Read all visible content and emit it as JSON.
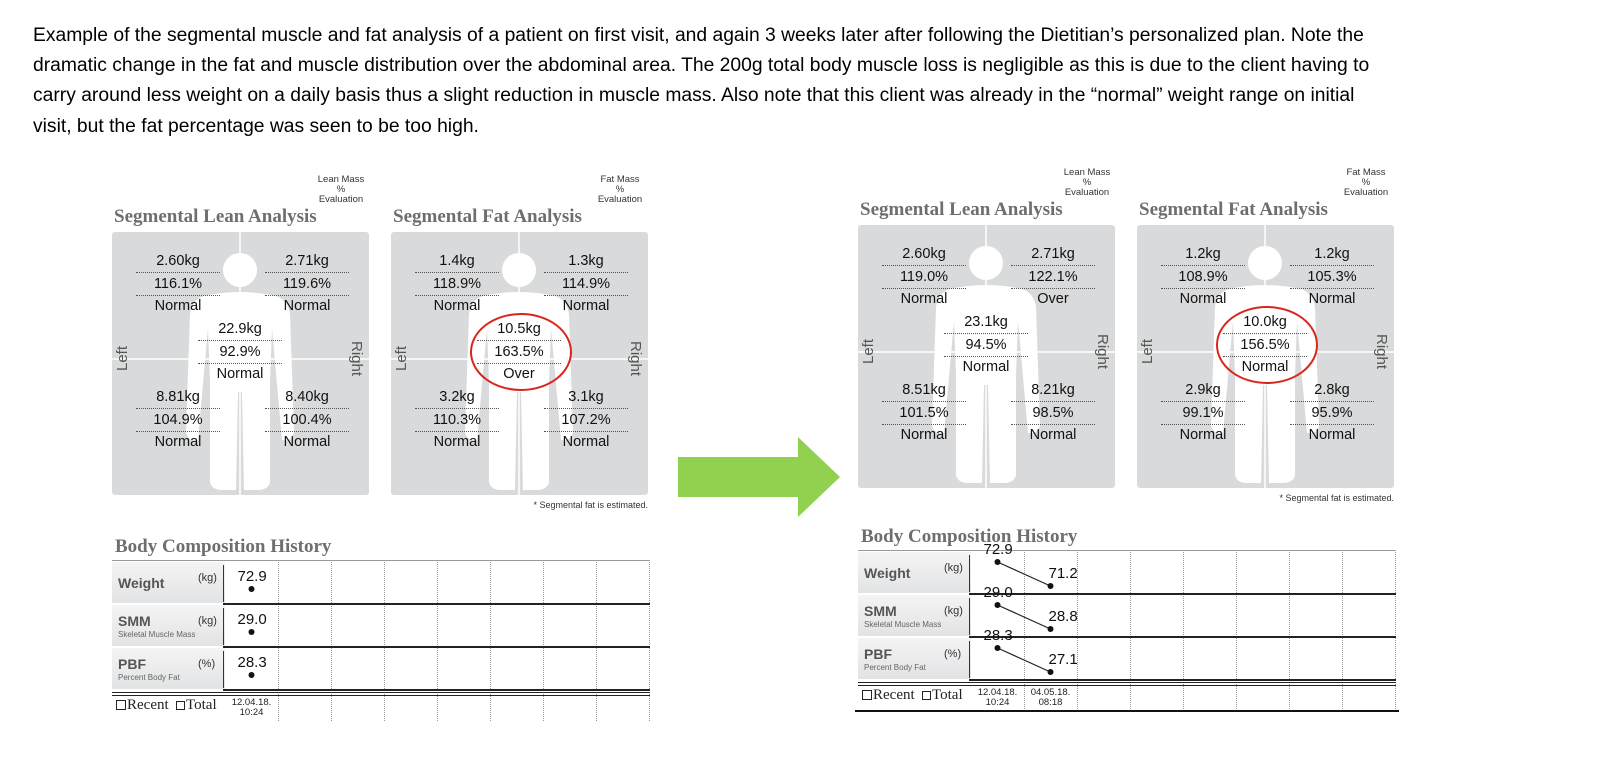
{
  "caption": {
    "lines": [
      "Example of the segmental muscle and fat analysis of a patient on first visit, and again 3 weeks later after following the Dietitian’s personalized plan.  Note the",
      "dramatic change in the fat and muscle distribution over the abdominal area.  The 200g total body muscle loss is negligible as this is due to the client having to",
      "carry around less weight on a daily basis thus a slight reduction in muscle mass.   Also note that this client was already in the “normal” weight range on initial",
      "visit, but the fat percentage was seen to be too high."
    ]
  },
  "reports": [
    {
      "lean": {
        "legend": [
          "Lean Mass",
          "%",
          "Evaluation"
        ],
        "title": "Segmental Lean Analysis",
        "side_left": "Left",
        "side_right": "Right",
        "segments": [
          {
            "mass": "2.60kg",
            "percent": "116.1%",
            "evaluation": "Normal"
          },
          {
            "mass": "2.71kg",
            "percent": "119.6%",
            "evaluation": "Normal"
          },
          {
            "mass": "22.9kg",
            "percent": "92.9%",
            "evaluation": "Normal"
          },
          {
            "mass": "8.81kg",
            "percent": "104.9%",
            "evaluation": "Normal"
          },
          {
            "mass": "8.40kg",
            "percent": "100.4%",
            "evaluation": "Normal"
          }
        ]
      },
      "fat": {
        "legend": [
          "Fat Mass",
          "%",
          "Evaluation"
        ],
        "title": "Segmental Fat Analysis",
        "side_left": "Left",
        "side_right": "Right",
        "segments": [
          {
            "mass": "1.4kg",
            "percent": "118.9%",
            "evaluation": "Normal"
          },
          {
            "mass": "1.3kg",
            "percent": "114.9%",
            "evaluation": "Normal"
          },
          {
            "mass": "10.5kg",
            "percent": "163.5%",
            "evaluation": "Over"
          },
          {
            "mass": "3.2kg",
            "percent": "110.3%",
            "evaluation": "Normal"
          },
          {
            "mass": "3.1kg",
            "percent": "107.2%",
            "evaluation": "Normal"
          }
        ],
        "note": "* Segmental fat is estimated."
      },
      "history": {
        "title": "Body Composition History",
        "rows": [
          {
            "name": "Weight",
            "unit": "(kg)",
            "values": [
              "72.9"
            ]
          },
          {
            "name": "SMM",
            "subtitle": "Skeletal Muscle Mass",
            "unit": "(kg)",
            "values": [
              "29.0"
            ]
          },
          {
            "name": "PBF",
            "subtitle": "Percent Body Fat",
            "unit": "(%)",
            "values": [
              "28.3"
            ]
          }
        ],
        "recent": "Recent",
        "total": "Total",
        "dates": [
          [
            "12.04.18.",
            "10:24"
          ]
        ]
      }
    },
    {
      "lean": {
        "legend": [
          "Lean Mass",
          "%",
          "Evaluation"
        ],
        "title": "Segmental Lean Analysis",
        "side_left": "Left",
        "side_right": "Right",
        "segments": [
          {
            "mass": "2.60kg",
            "percent": "119.0%",
            "evaluation": "Normal"
          },
          {
            "mass": "2.71kg",
            "percent": "122.1%",
            "evaluation": "Over"
          },
          {
            "mass": "23.1kg",
            "percent": "94.5%",
            "evaluation": "Normal"
          },
          {
            "mass": "8.51kg",
            "percent": "101.5%",
            "evaluation": "Normal"
          },
          {
            "mass": "8.21kg",
            "percent": "98.5%",
            "evaluation": "Normal"
          }
        ]
      },
      "fat": {
        "legend": [
          "Fat Mass",
          "%",
          "Evaluation"
        ],
        "title": "Segmental Fat Analysis",
        "side_left": "Left",
        "side_right": "Right",
        "segments": [
          {
            "mass": "1.2kg",
            "percent": "108.9%",
            "evaluation": "Normal"
          },
          {
            "mass": "1.2kg",
            "percent": "105.3%",
            "evaluation": "Normal"
          },
          {
            "mass": "10.0kg",
            "percent": "156.5%",
            "evaluation": "Normal"
          },
          {
            "mass": "2.9kg",
            "percent": "99.1%",
            "evaluation": "Normal"
          },
          {
            "mass": "2.8kg",
            "percent": "95.9%",
            "evaluation": "Normal"
          }
        ],
        "note": "* Segmental fat is estimated."
      },
      "history": {
        "title": "Body Composition History",
        "rows": [
          {
            "name": "Weight",
            "unit": "(kg)",
            "values": [
              "72.9",
              "71.2"
            ]
          },
          {
            "name": "SMM",
            "subtitle": "Skeletal Muscle Mass",
            "unit": "(kg)",
            "values": [
              "29.0",
              "28.8"
            ]
          },
          {
            "name": "PBF",
            "subtitle": "Percent Body Fat",
            "unit": "(%)",
            "values": [
              "28.3",
              "27.1"
            ]
          }
        ],
        "recent": "Recent",
        "total": "Total",
        "dates": [
          [
            "12.04.18.",
            "10:24"
          ],
          [
            "04.05.18.",
            "08:18"
          ]
        ]
      }
    }
  ]
}
